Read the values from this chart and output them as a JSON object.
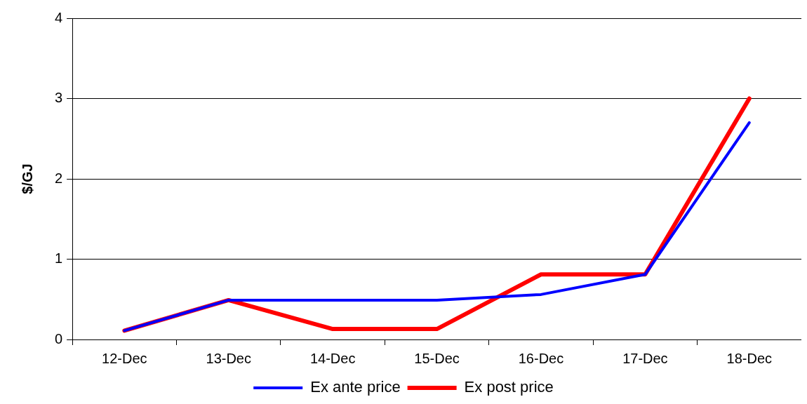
{
  "chart_data": {
    "type": "line",
    "ylabel": "$/GJ",
    "categories": [
      "12-Dec",
      "13-Dec",
      "14-Dec",
      "15-Dec",
      "16-Dec",
      "17-Dec",
      "18-Dec"
    ],
    "series": [
      {
        "name": "Ex ante price",
        "color": "#0000ff",
        "values": [
          0.11,
          0.49,
          0.49,
          0.49,
          0.56,
          0.81,
          2.7
        ]
      },
      {
        "name": "Ex post price",
        "color": "#ff0000",
        "values": [
          0.11,
          0.49,
          0.13,
          0.13,
          0.81,
          0.81,
          3.0
        ]
      }
    ],
    "ylim": [
      0,
      4
    ],
    "yticks": [
      0,
      1,
      2,
      3,
      4
    ],
    "grid": "y",
    "legend": "bottom",
    "marker": "none",
    "line_style": "solid"
  }
}
